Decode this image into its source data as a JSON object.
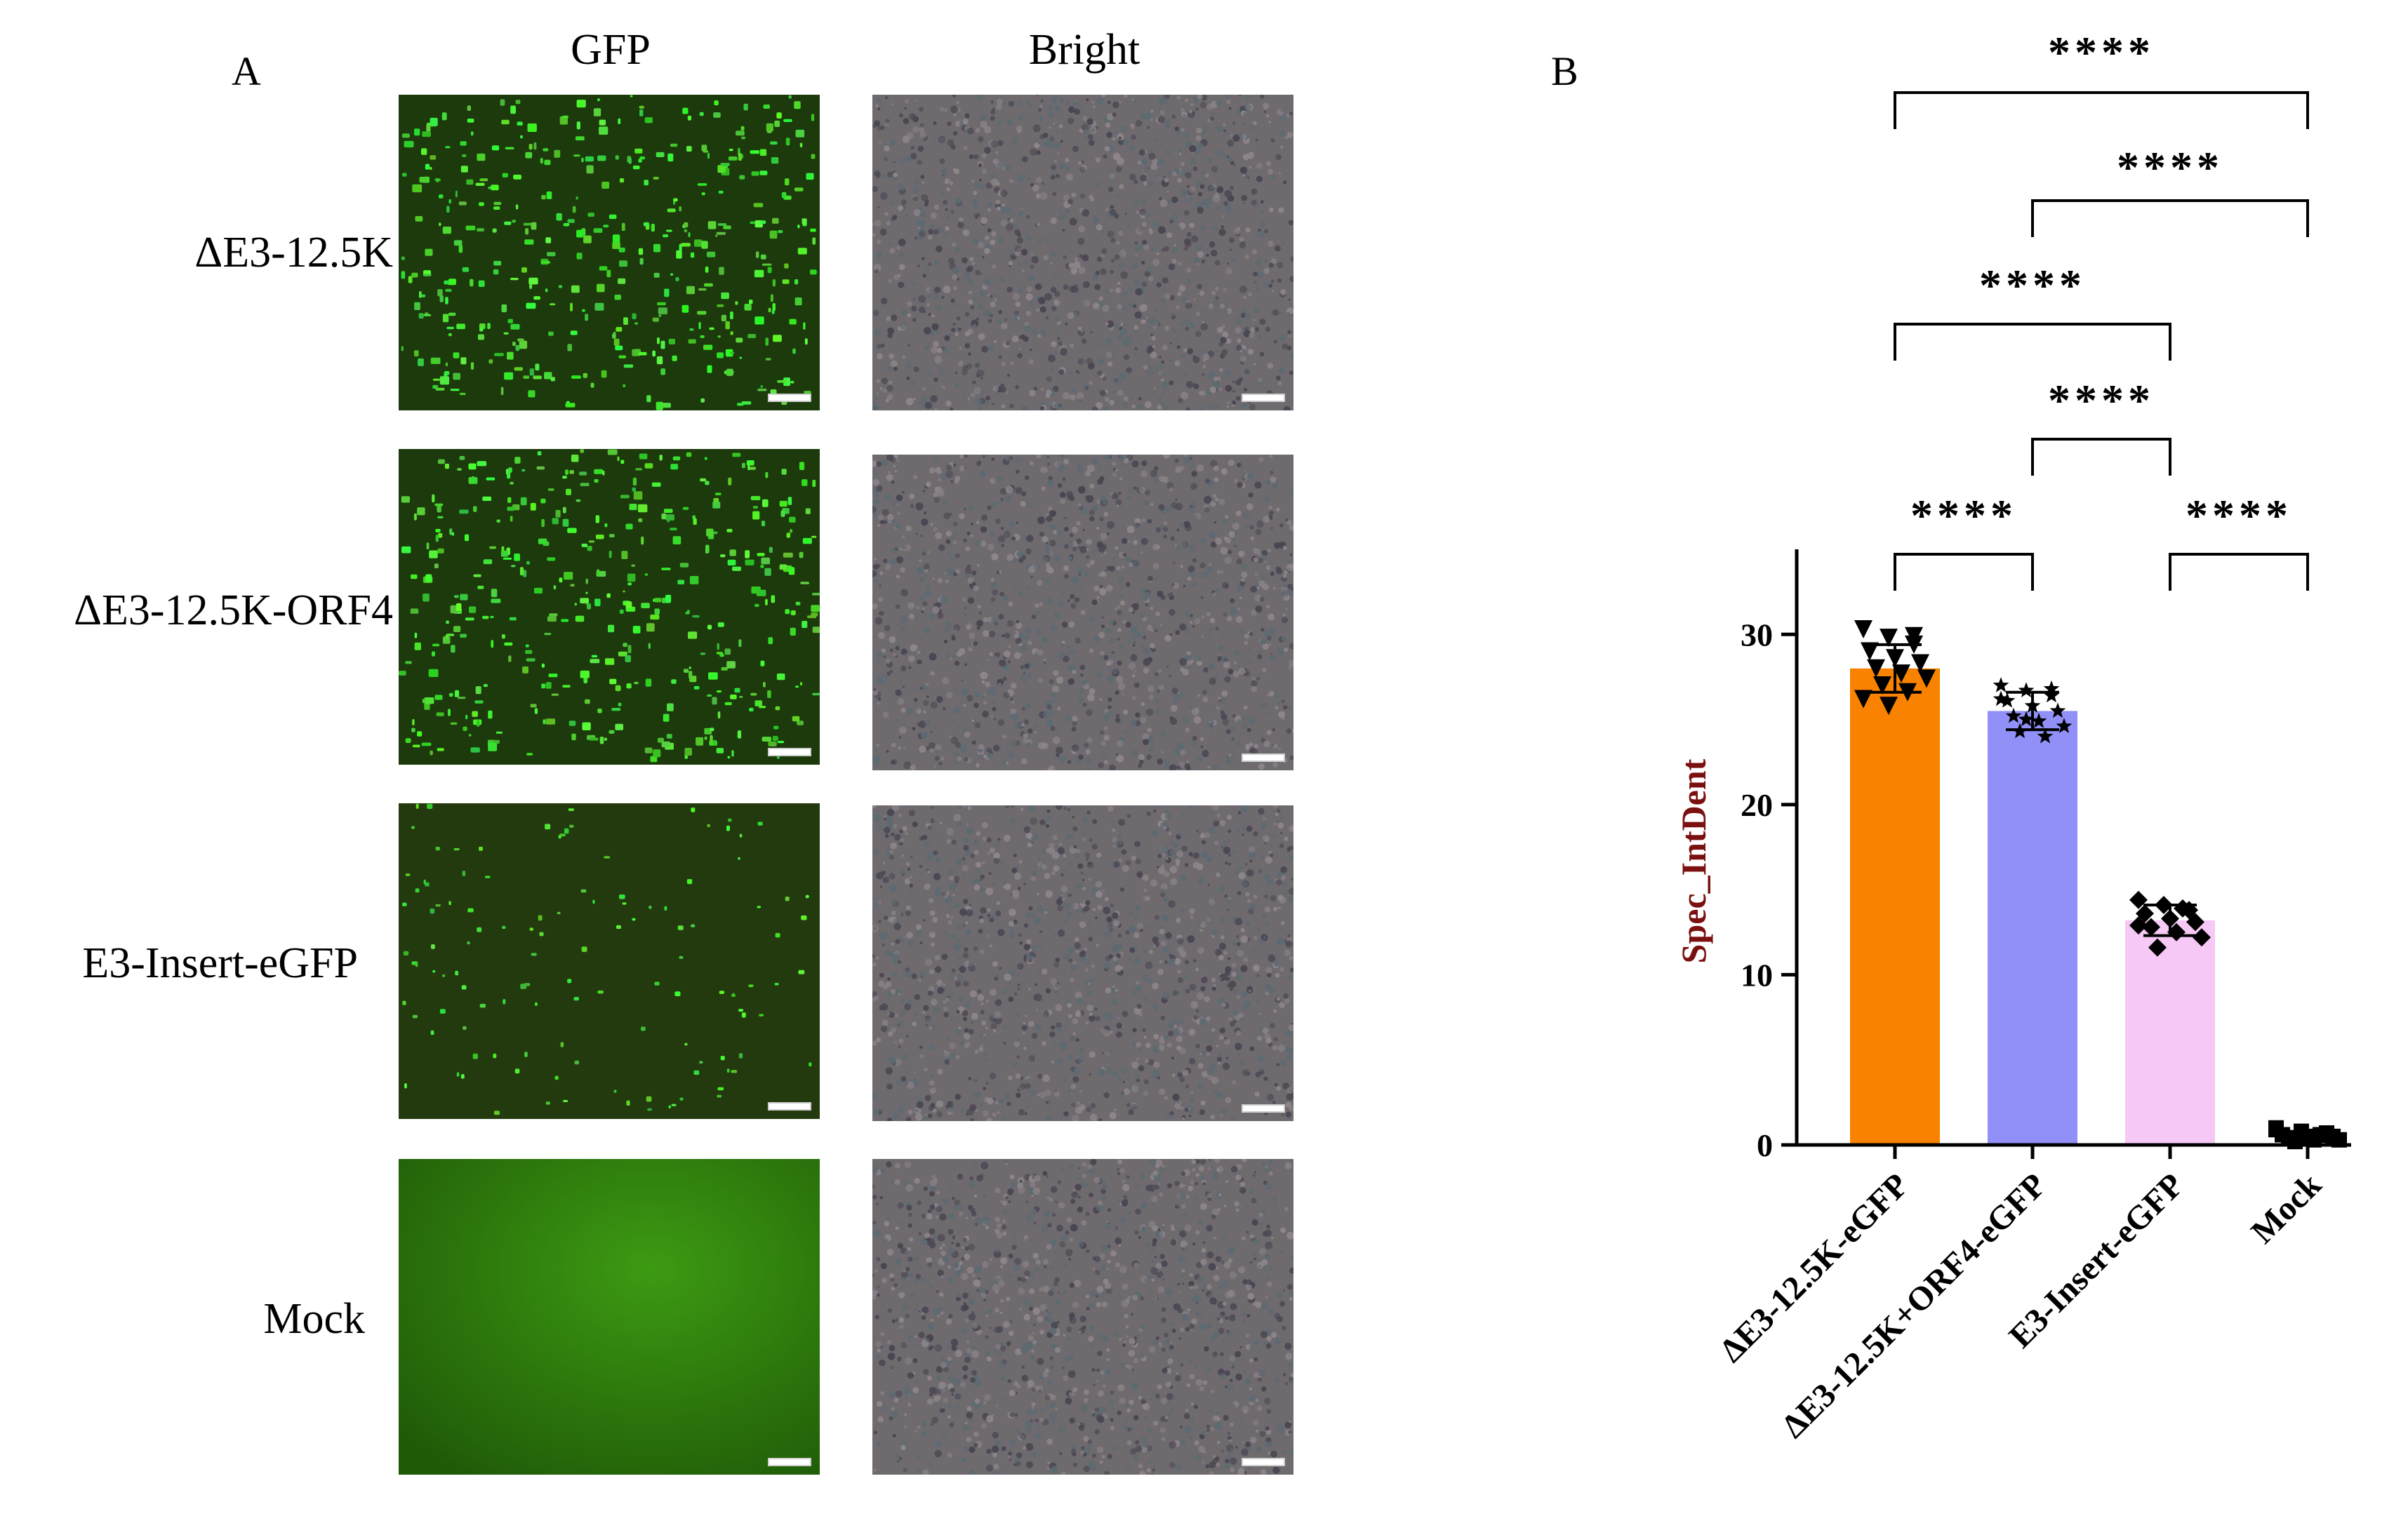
{
  "panels": {
    "a_letter": "A",
    "b_letter": "B",
    "columns": [
      "GFP",
      "Bright"
    ],
    "rows": [
      "ΔE3-12.5K",
      "ΔE3-12.5K-ORF4",
      "E3-Insert-eGFP",
      "Mock"
    ]
  },
  "chart_data": {
    "type": "bar",
    "categories": [
      "ΔE3-12.5K-eGFP",
      "ΔE3-12.5K+ORF4-eGFP",
      "E3-Insert-eGFP",
      "Mock"
    ],
    "values": [
      28,
      25.5,
      13.2,
      0.5
    ],
    "error": [
      1.4,
      1.1,
      0.9,
      0.3
    ],
    "points": [
      [
        30.3,
        29.8,
        29.4,
        29.0,
        28.6,
        28.3,
        28.0,
        27.7,
        27.4,
        27.0,
        26.6,
        26.2,
        25.8,
        29.9
      ],
      [
        27.0,
        26.7,
        26.4,
        26.1,
        25.8,
        25.5,
        25.2,
        24.9,
        24.6,
        24.3,
        24.0,
        26.2,
        25.0,
        26.8
      ],
      [
        14.4,
        14.1,
        13.8,
        13.6,
        13.3,
        13.1,
        12.8,
        12.5,
        12.2,
        11.6,
        13.9,
        12.9
      ],
      [
        1.0,
        0.8,
        0.7,
        0.6,
        0.5,
        0.5,
        0.4,
        0.3,
        0.3,
        0.2,
        0.6,
        0.9
      ]
    ],
    "markers": [
      "triangle-down",
      "star",
      "diamond",
      "square"
    ],
    "colors": [
      "#f98200",
      "#9090f8",
      "#f5c8f5",
      "#ffffff"
    ],
    "ylabel": "Spec_IntDent",
    "ylabel_color": "#7a1010",
    "ylim": [
      0,
      35
    ],
    "yticks": [
      0,
      10,
      20,
      30
    ],
    "significance": [
      {
        "from": 0,
        "to": 3,
        "label": "****"
      },
      {
        "from": 1,
        "to": 3,
        "label": "****"
      },
      {
        "from": 0,
        "to": 2,
        "label": "****"
      },
      {
        "from": 1,
        "to": 2,
        "label": "****"
      },
      {
        "from": 0,
        "to": 1,
        "label": "****"
      },
      {
        "from": 2,
        "to": 3,
        "label": "****"
      }
    ]
  }
}
